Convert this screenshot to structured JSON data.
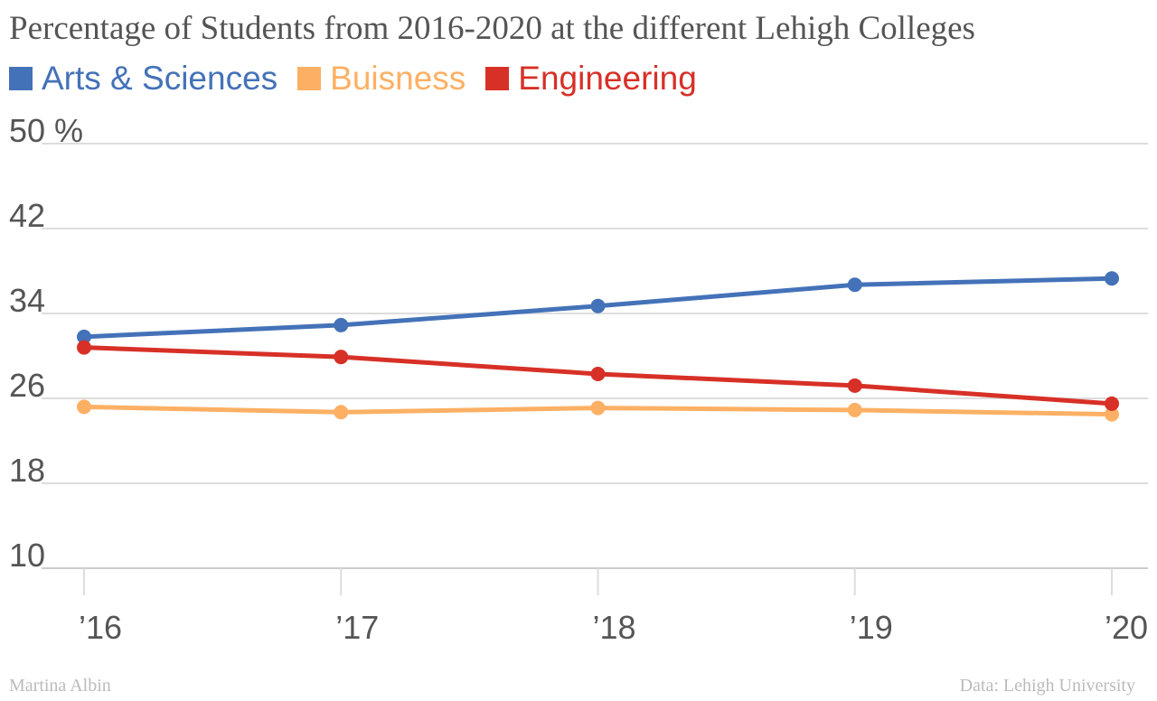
{
  "chart_data": {
    "type": "line",
    "title": "Percentage of Students from 2016-2020 at the different Lehigh Colleges",
    "categories": [
      "’16",
      "’17",
      "’18",
      "’19",
      "’20"
    ],
    "y_ticks": [
      {
        "value": 50,
        "label": "50 %"
      },
      {
        "value": 42,
        "label": "42"
      },
      {
        "value": 34,
        "label": "34"
      },
      {
        "value": 26,
        "label": "26"
      },
      {
        "value": 18,
        "label": "18"
      },
      {
        "value": 10,
        "label": "10"
      }
    ],
    "ylim": [
      10,
      50
    ],
    "grid": true,
    "legend_position": "top-left",
    "series": [
      {
        "name": "Arts & Sciences",
        "color": "#4472b8",
        "values": [
          31.8,
          32.9,
          34.7,
          36.7,
          37.3
        ]
      },
      {
        "name": "Buisness",
        "color": "#fdb064",
        "values": [
          25.2,
          24.7,
          25.1,
          24.9,
          24.5
        ]
      },
      {
        "name": "Engineering",
        "color": "#d73027",
        "values": [
          30.8,
          29.9,
          28.3,
          27.2,
          25.5
        ]
      }
    ]
  },
  "footer": {
    "author": "Martina Albin",
    "source": "Data: Lehigh University"
  }
}
